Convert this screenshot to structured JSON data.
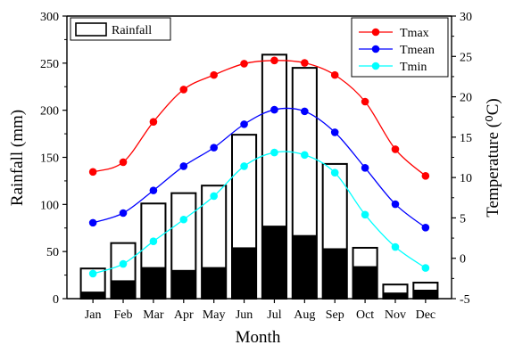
{
  "chart_data": {
    "type": "bar+line",
    "categories": [
      "Jan",
      "Feb",
      "Mar",
      "Apr",
      "May",
      "Jun",
      "Jul",
      "Aug",
      "Sep",
      "Oct",
      "Nov",
      "Dec"
    ],
    "xlabel": "Month",
    "ylabel_left": "Rainfall (mm)",
    "ylabel_right": "Temperature",
    "ylabel_right_unit": "(⁰C)",
    "left_axis": {
      "range": [
        0,
        300
      ],
      "ticks": [
        0,
        50,
        100,
        150,
        200,
        250,
        300
      ]
    },
    "right_axis": {
      "range": [
        -5,
        30
      ],
      "ticks": [
        -5,
        0,
        5,
        10,
        15,
        20,
        25,
        30
      ]
    },
    "bars": [
      {
        "name": "Rainfall",
        "style": "hollow",
        "values": [
          32,
          59,
          101,
          112,
          120,
          174,
          259,
          245,
          143,
          54,
          15,
          17
        ]
      },
      {
        "name": "",
        "style": "filled",
        "color": "#000000",
        "values": [
          7,
          19,
          33,
          30,
          33,
          54,
          77,
          67,
          53,
          34,
          6,
          9
        ]
      }
    ],
    "series": [
      {
        "name": "Tmax",
        "color": "#ff0000",
        "values": [
          10.7,
          11.9,
          16.9,
          20.9,
          22.7,
          24.1,
          24.5,
          24.2,
          22.7,
          19.4,
          13.5,
          10.2
        ]
      },
      {
        "name": "Tmean",
        "color": "#0000ff",
        "values": [
          4.4,
          5.6,
          8.4,
          11.4,
          13.7,
          16.6,
          18.4,
          18.2,
          15.6,
          11.2,
          6.7,
          3.8
        ]
      },
      {
        "name": "Tmin",
        "color": "#00ffff",
        "values": [
          -1.9,
          -0.7,
          2.1,
          4.8,
          7.7,
          11.4,
          13.1,
          12.8,
          10.6,
          5.4,
          1.4,
          -1.2
        ]
      }
    ],
    "legend_placement": "top-right",
    "bar_legend_placement": "top-left",
    "grid": false
  }
}
